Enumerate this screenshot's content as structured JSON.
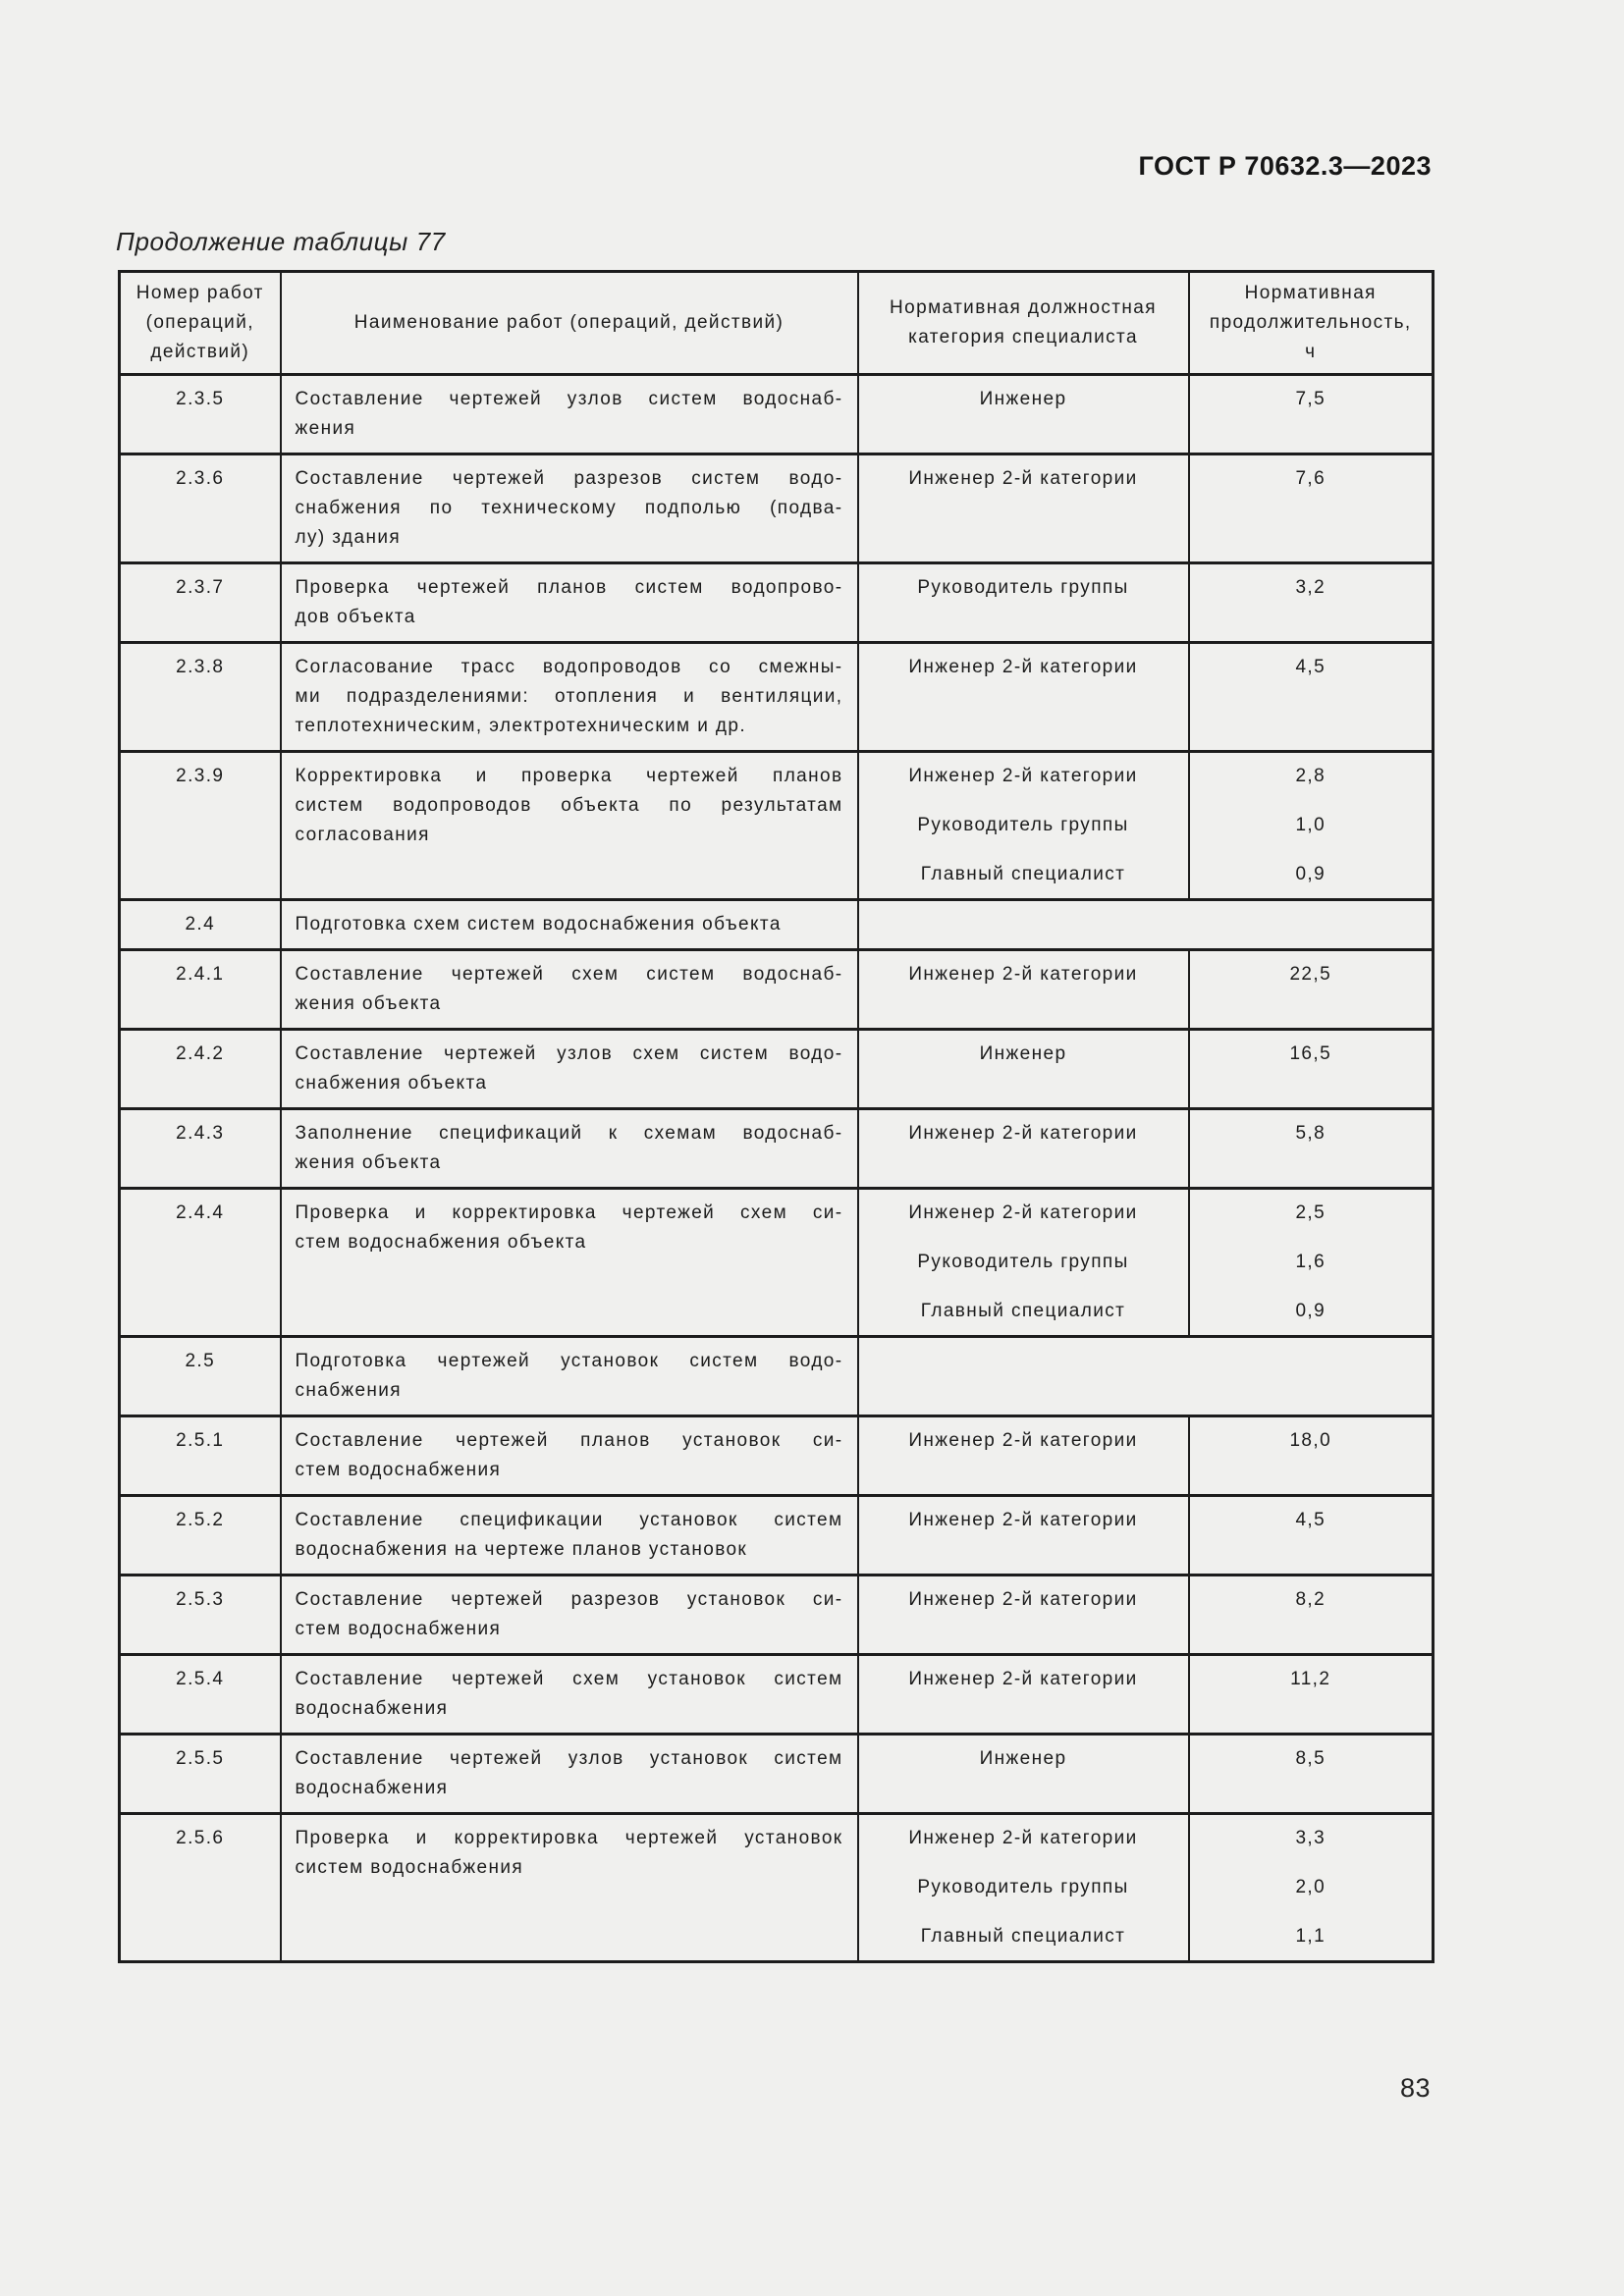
{
  "page": {
    "doc_code": "ГОСТ Р 70632.3—2023",
    "table_caption": "Продолжение таблицы 77",
    "page_number": "83"
  },
  "table": {
    "headers": {
      "col_number": "Номер работ\n(операций,\nдействий)",
      "col_name": "Наименование работ (операций, действий)",
      "col_category": "Нормативная должностная\nкатегория специалиста",
      "col_duration": "Нормативная\nпродолжительность,\nч"
    },
    "rows": [
      {
        "num": "2.3.5",
        "name_lines": [
          "Составление чертежей узлов систем водоснаб-",
          "жения"
        ],
        "entries": [
          {
            "category": "Инженер",
            "hours": "7,5"
          }
        ]
      },
      {
        "num": "2.3.6",
        "name_lines": [
          "Составление чертежей разрезов систем водо-",
          "снабжения по техническому подполью (подва-",
          "лу) здания"
        ],
        "entries": [
          {
            "category": "Инженер 2-й категории",
            "hours": "7,6"
          }
        ]
      },
      {
        "num": "2.3.7",
        "name_lines": [
          "Проверка чертежей планов систем водопрово-",
          "дов объекта"
        ],
        "entries": [
          {
            "category": "Руководитель группы",
            "hours": "3,2"
          }
        ]
      },
      {
        "num": "2.3.8",
        "name_lines": [
          "Согласование трасс водопроводов со смежны-",
          "ми подразделениями: отопления и вентиляции,",
          "теплотехническим, электротехническим и др."
        ],
        "entries": [
          {
            "category": "Инженер 2-й категории",
            "hours": "4,5"
          }
        ]
      },
      {
        "num": "2.3.9",
        "name_lines": [
          "Корректировка и проверка чертежей планов",
          "систем водопроводов объекта по результатам",
          "согласования"
        ],
        "entries": [
          {
            "category": "Инженер 2-й категории",
            "hours": "2,8"
          },
          {
            "category": "Руководитель группы",
            "hours": "1,0"
          },
          {
            "category": "Главный специалист",
            "hours": "0,9"
          }
        ]
      },
      {
        "num": "2.4",
        "name_lines": [
          "Подготовка схем систем водоснабжения объекта"
        ],
        "entries": []
      },
      {
        "num": "2.4.1",
        "name_lines": [
          "Составление чертежей схем систем водоснаб-",
          "жения объекта"
        ],
        "entries": [
          {
            "category": "Инженер 2-й категории",
            "hours": "22,5"
          }
        ]
      },
      {
        "num": "2.4.2",
        "name_lines": [
          "Составление чертежей узлов схем систем водо-",
          "снабжения объекта"
        ],
        "entries": [
          {
            "category": "Инженер",
            "hours": "16,5"
          }
        ]
      },
      {
        "num": "2.4.3",
        "name_lines": [
          "Заполнение спецификаций к схемам водоснаб-",
          "жения объекта"
        ],
        "entries": [
          {
            "category": "Инженер 2-й категории",
            "hours": "5,8"
          }
        ]
      },
      {
        "num": "2.4.4",
        "name_lines": [
          "Проверка и корректировка чертежей схем си-",
          "стем водоснабжения объекта"
        ],
        "entries": [
          {
            "category": "Инженер 2-й категории",
            "hours": "2,5"
          },
          {
            "category": "Руководитель группы",
            "hours": "1,6"
          },
          {
            "category": "Главный специалист",
            "hours": "0,9"
          }
        ]
      },
      {
        "num": "2.5",
        "name_lines": [
          "Подготовка чертежей установок систем водо-",
          "снабжения"
        ],
        "entries": []
      },
      {
        "num": "2.5.1",
        "name_lines": [
          "Составление чертежей планов установок си-",
          "стем водоснабжения"
        ],
        "entries": [
          {
            "category": "Инженер 2-й категории",
            "hours": "18,0"
          }
        ]
      },
      {
        "num": "2.5.2",
        "name_lines": [
          "Составление спецификации установок систем",
          "водоснабжения на чертеже планов установок"
        ],
        "entries": [
          {
            "category": "Инженер 2-й категории",
            "hours": "4,5"
          }
        ]
      },
      {
        "num": "2.5.3",
        "name_lines": [
          "Составление чертежей разрезов установок си-",
          "стем водоснабжения"
        ],
        "entries": [
          {
            "category": "Инженер 2-й категории",
            "hours": "8,2"
          }
        ]
      },
      {
        "num": "2.5.4",
        "name_lines": [
          "Составление чертежей схем установок систем",
          "водоснабжения"
        ],
        "entries": [
          {
            "category": "Инженер 2-й категории",
            "hours": "11,2"
          }
        ]
      },
      {
        "num": "2.5.5",
        "name_lines": [
          "Составление чертежей узлов установок систем",
          "водоснабжения"
        ],
        "entries": [
          {
            "category": "Инженер",
            "hours": "8,5"
          }
        ]
      },
      {
        "num": "2.5.6",
        "name_lines": [
          "Проверка и корректировка чертежей установок",
          "систем водоснабжения"
        ],
        "entries": [
          {
            "category": "Инженер 2-й категории",
            "hours": "3,3"
          },
          {
            "category": "Руководитель группы",
            "hours": "2,0"
          },
          {
            "category": "Главный специалист",
            "hours": "1,1"
          }
        ]
      }
    ]
  }
}
